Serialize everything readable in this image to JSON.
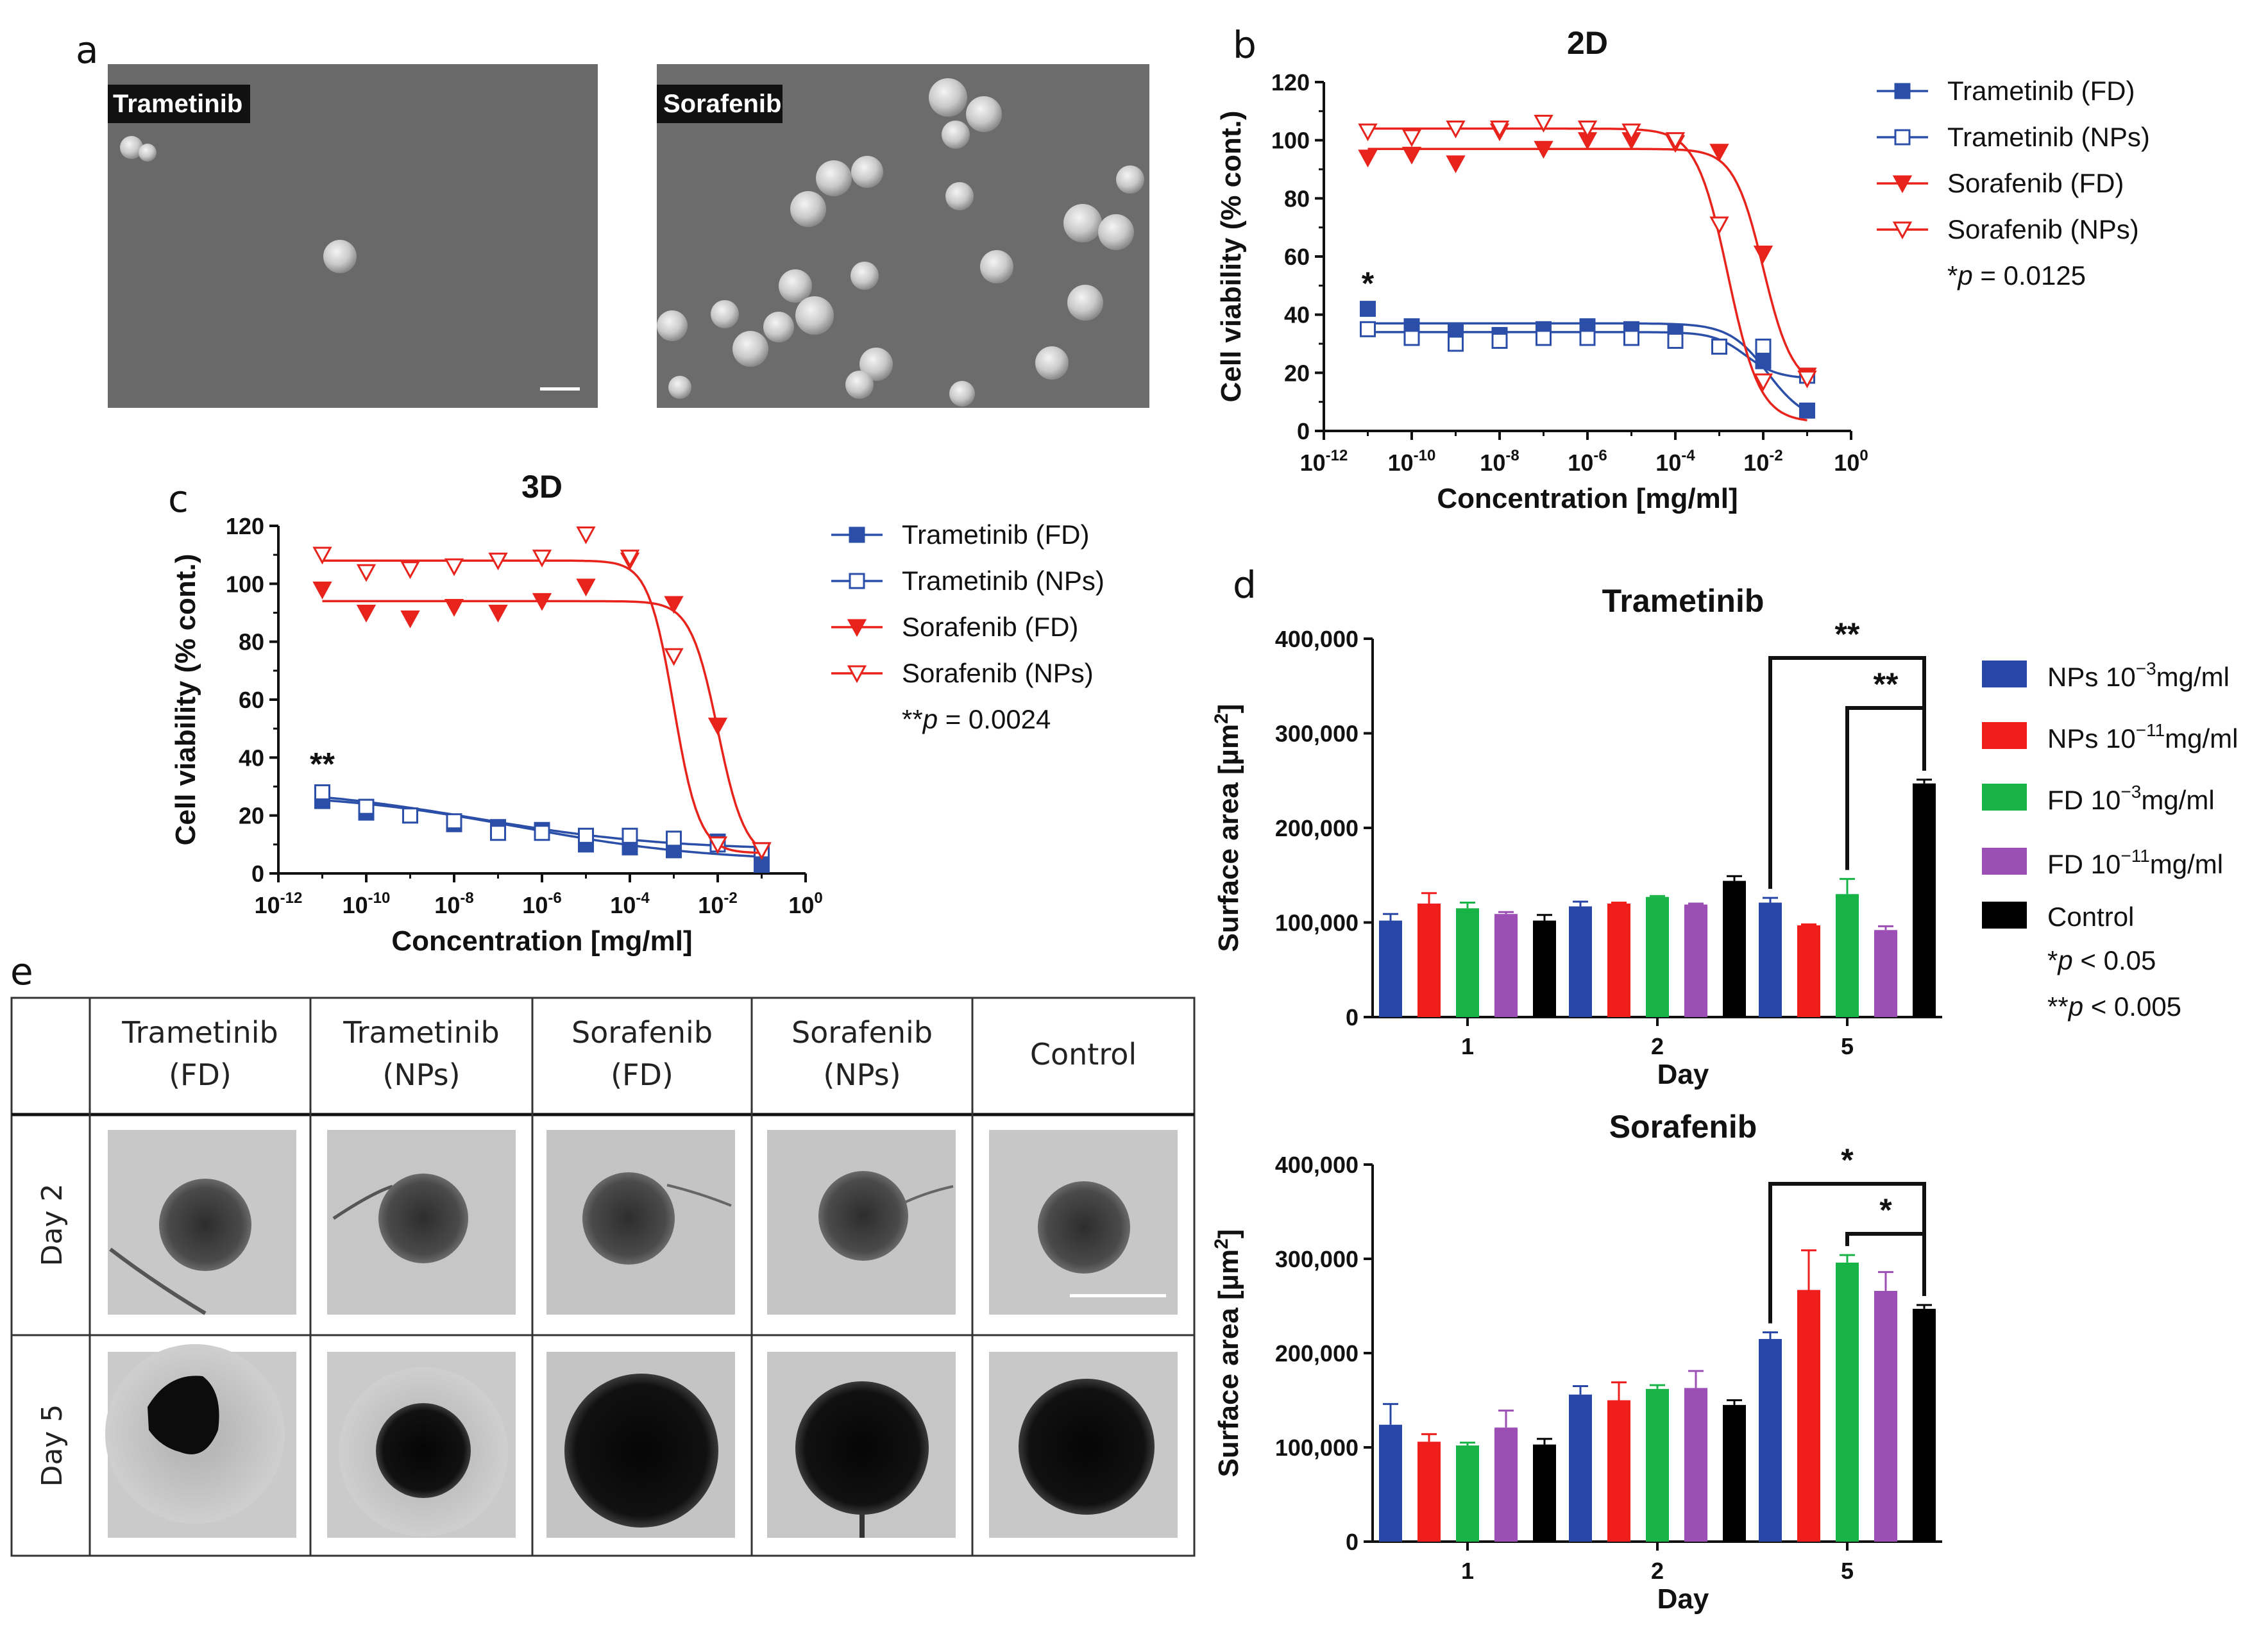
{
  "panel_labels": {
    "a": "a",
    "b": "b",
    "c": "c",
    "d": "d",
    "e": "e"
  },
  "panel_a": {
    "images": [
      {
        "label": "Trametinib"
      },
      {
        "label": "Sorafenib"
      }
    ]
  },
  "panel_e": {
    "columns": [
      "Trametinib",
      "(FD)",
      "Trametinib",
      "(NPs)",
      "Sorafenib",
      "(FD)",
      "Sorafenib",
      "(NPs)",
      "Control"
    ],
    "column_headers": [
      {
        "line1": "Trametinib",
        "line2": "(FD)"
      },
      {
        "line1": "Trametinib",
        "line2": "(NPs)"
      },
      {
        "line1": "Sorafenib",
        "line2": "(FD)"
      },
      {
        "line1": "Sorafenib",
        "line2": "(NPs)"
      },
      {
        "line1": "Control",
        "line2": ""
      }
    ],
    "rows": [
      "Day 2",
      "Day 5"
    ]
  },
  "chart_data": [
    {
      "id": "b",
      "type": "scatter",
      "title": "2D",
      "xlabel": "Concentration [mg/ml]",
      "ylabel": "Cell viability (% cont.)",
      "xscale": "log",
      "xlim_exp": [
        -12,
        0
      ],
      "xticks": [
        "10",
        "10",
        "10",
        "10",
        "10",
        "10",
        "10"
      ],
      "xtick_exps": [
        "-12",
        "-10",
        "-8",
        "-6",
        "-4",
        "-2",
        "0"
      ],
      "ylim": [
        0,
        120
      ],
      "yticks": [
        "0",
        "20",
        "40",
        "60",
        "80",
        "100",
        "120"
      ],
      "legend_position": "right",
      "significance": {
        "marker": "*",
        "x_exp": -11,
        "y": 47
      },
      "annotation_prefix": "*",
      "annotation_p": "p",
      "annotation_value": " = 0.0125",
      "series": [
        {
          "name": "Trametinib (FD)",
          "color": "#2b4fa8",
          "marker": "square-filled",
          "x_exp": [
            -11,
            -10,
            -9,
            -8,
            -7,
            -6,
            -5,
            -4,
            -3,
            -2,
            -1
          ],
          "y": [
            42,
            36,
            34,
            33,
            35,
            36,
            35,
            34,
            29,
            24,
            7
          ],
          "fit": {
            "top": 37,
            "bottom": 3,
            "log_ic50": -1.9,
            "hill": 1.0
          }
        },
        {
          "name": "Trametinib (NPs)",
          "color": "#2b4fa8",
          "marker": "square-open",
          "x_exp": [
            -11,
            -10,
            -9,
            -8,
            -7,
            -6,
            -5,
            -4,
            -3,
            -2,
            -1
          ],
          "y": [
            35,
            32,
            30,
            31,
            32,
            32,
            32,
            31,
            29,
            29,
            19
          ],
          "fit": {
            "top": 34,
            "bottom": 18,
            "log_ic50": -2.4,
            "hill": 1.2
          }
        },
        {
          "name": "Sorafenib (FD)",
          "color": "#e8231c",
          "marker": "triangle-down-filled",
          "x_exp": [
            -11,
            -10,
            -9,
            -8,
            -7,
            -6,
            -5,
            -4,
            -3,
            -2,
            -1
          ],
          "y": [
            94,
            95,
            92,
            103,
            97,
            100,
            100,
            99,
            96,
            61,
            19
          ],
          "fit": {
            "top": 97,
            "bottom": 15,
            "log_ic50": -2.0,
            "hill": 1.3
          }
        },
        {
          "name": "Sorafenib (NPs)",
          "color": "#e8231c",
          "marker": "triangle-down-open",
          "x_exp": [
            -11,
            -10,
            -9,
            -8,
            -7,
            -6,
            -5,
            -4,
            -3,
            -2,
            -1
          ],
          "y": [
            103,
            101,
            104,
            104,
            106,
            104,
            103,
            100,
            71,
            17,
            18
          ],
          "fit": {
            "top": 104,
            "bottom": 3,
            "log_ic50": -2.8,
            "hill": 1.2
          }
        }
      ]
    },
    {
      "id": "c",
      "type": "scatter",
      "title": "3D",
      "xlabel": "Concentration [mg/ml]",
      "ylabel": "Cell viability (% cont.)",
      "xscale": "log",
      "xlim_exp": [
        -12,
        0
      ],
      "xticks": [
        "10",
        "10",
        "10",
        "10",
        "10",
        "10",
        "10"
      ],
      "xtick_exps": [
        "-12",
        "-10",
        "-8",
        "-6",
        "-4",
        "-2",
        "0"
      ],
      "ylim": [
        0,
        120
      ],
      "yticks": [
        "0",
        "20",
        "40",
        "60",
        "80",
        "100",
        "120"
      ],
      "legend_position": "right",
      "significance": {
        "marker": "**",
        "x_exp": -11,
        "y": 34
      },
      "annotation_prefix": "**",
      "annotation_p": "p",
      "annotation_value": " = 0.0024",
      "series": [
        {
          "name": "Trametinib (FD)",
          "color": "#2b4fa8",
          "marker": "square-filled",
          "x_exp": [
            -11,
            -10,
            -9,
            -8,
            -7,
            -6,
            -5,
            -4,
            -3,
            -2,
            -1
          ],
          "y": [
            25,
            21,
            20,
            17,
            16,
            15,
            10,
            9,
            8,
            11,
            3
          ],
          "fit": {
            "top": 28,
            "bottom": 4,
            "log_ic50": -6.5,
            "hill": 0.2
          }
        },
        {
          "name": "Trametinib (NPs)",
          "color": "#2b4fa8",
          "marker": "square-open",
          "x_exp": [
            -11,
            -10,
            -9,
            -8,
            -7,
            -6,
            -5,
            -4,
            -3,
            -2,
            -1
          ],
          "y": [
            28,
            23,
            20,
            18,
            14,
            14,
            13,
            13,
            12,
            10,
            8
          ],
          "fit": {
            "top": 30,
            "bottom": 8,
            "log_ic50": -7.5,
            "hill": 0.2
          }
        },
        {
          "name": "Sorafenib (FD)",
          "color": "#e8231c",
          "marker": "triangle-down-filled",
          "x_exp": [
            -11,
            -10,
            -9,
            -8,
            -7,
            -6,
            -5,
            -4,
            -3,
            -2,
            -1
          ],
          "y": [
            98,
            90,
            88,
            92,
            90,
            94,
            99,
            108,
            93,
            51,
            8
          ],
          "fit": {
            "top": 94,
            "bottom": 5,
            "log_ic50": -2.0,
            "hill": 1.4
          }
        },
        {
          "name": "Sorafenib (NPs)",
          "color": "#e8231c",
          "marker": "triangle-down-open",
          "x_exp": [
            -11,
            -10,
            -9,
            -8,
            -7,
            -6,
            -5,
            -4,
            -3,
            -2,
            -1
          ],
          "y": [
            110,
            104,
            105,
            106,
            108,
            109,
            117,
            109,
            75,
            10,
            8
          ],
          "fit": {
            "top": 108,
            "bottom": 7,
            "log_ic50": -3.0,
            "hill": 1.5
          }
        }
      ]
    },
    {
      "id": "d-top",
      "type": "bar",
      "title": "Trametinib",
      "xlabel": "Day",
      "ylabel_prefix": "Surface area [µm",
      "ylabel_sup": "2",
      "ylabel_suffix": "]",
      "categories": [
        "1",
        "2",
        "5"
      ],
      "ylim": [
        0,
        400000
      ],
      "yticks": [
        "0",
        "100,000",
        "200,000",
        "300,000",
        "400,000"
      ],
      "series": [
        {
          "name": "NPs 10^-3 mg/ml",
          "color": "#2746a6",
          "values": [
            102000,
            117000,
            121000
          ],
          "errors": [
            7000,
            5000,
            5000
          ]
        },
        {
          "name": "NPs 10^-11 mg/ml",
          "color": "#f01d1d",
          "values": [
            120000,
            120000,
            97000
          ],
          "errors": [
            11000,
            1000,
            1000
          ]
        },
        {
          "name": "FD 10^-3 mg/ml",
          "color": "#17b347",
          "values": [
            115000,
            127000,
            130000
          ],
          "errors": [
            6000,
            1000,
            16000
          ]
        },
        {
          "name": "FD 10^-11 mg/ml",
          "color": "#9b4fb5",
          "values": [
            109000,
            119000,
            92000
          ],
          "errors": [
            2000,
            1000,
            4000
          ]
        },
        {
          "name": "Control",
          "color": "#000000",
          "values": [
            102000,
            144000,
            247000
          ],
          "errors": [
            6000,
            5000,
            4000
          ]
        }
      ],
      "significance": [
        {
          "label": "**",
          "from_category": 2,
          "from_series": 0,
          "to_series": 4,
          "level": 1
        },
        {
          "label": "**",
          "from_category": 2,
          "from_series": 2,
          "to_series": 4,
          "level": 0
        }
      ]
    },
    {
      "id": "d-bottom",
      "type": "bar",
      "title": "Sorafenib",
      "xlabel": "Day",
      "ylabel_prefix": "Surface area [µm",
      "ylabel_sup": "2",
      "ylabel_suffix": "]",
      "categories": [
        "1",
        "2",
        "5"
      ],
      "ylim": [
        0,
        400000
      ],
      "yticks": [
        "0",
        "100,000",
        "200,000",
        "300,000",
        "400,000"
      ],
      "series": [
        {
          "name": "NPs 10^-3 mg/ml",
          "color": "#2746a6",
          "values": [
            124000,
            156000,
            215000
          ],
          "errors": [
            22000,
            9000,
            7000
          ]
        },
        {
          "name": "NPs 10^-11 mg/ml",
          "color": "#f01d1d",
          "values": [
            106000,
            150000,
            267000
          ],
          "errors": [
            8000,
            19000,
            42000
          ]
        },
        {
          "name": "FD 10^-3 mg/ml",
          "color": "#17b347",
          "values": [
            102000,
            162000,
            296000
          ],
          "errors": [
            3000,
            4000,
            8000
          ]
        },
        {
          "name": "FD 10^-11 mg/ml",
          "color": "#9b4fb5",
          "values": [
            121000,
            163000,
            266000
          ],
          "errors": [
            18000,
            18000,
            20000
          ]
        },
        {
          "name": "Control",
          "color": "#000000",
          "values": [
            103000,
            145000,
            247000
          ],
          "errors": [
            6000,
            5000,
            4000
          ]
        }
      ],
      "significance": [
        {
          "label": "*",
          "from_category": 2,
          "from_series": 0,
          "to_series": 4,
          "level": 1
        },
        {
          "label": "*",
          "from_category": 2,
          "from_series": 2,
          "to_series": 4,
          "level": 0
        }
      ]
    }
  ],
  "legend_d": {
    "items": [
      {
        "base": "NPs 10",
        "sup": "−3",
        "unit": "mg/ml",
        "color": "#2746a6"
      },
      {
        "base": "NPs 10",
        "sup": "−11",
        "unit": "mg/ml",
        "color": "#f01d1d"
      },
      {
        "base": "FD 10",
        "sup": "−3",
        "unit": "mg/ml",
        "color": "#17b347"
      },
      {
        "base": "FD 10",
        "sup": "−11",
        "unit": "mg/ml",
        "color": "#9b4fb5"
      },
      {
        "base": "Control",
        "sup": "",
        "unit": "",
        "color": "#000000"
      }
    ],
    "note1_prefix": "*",
    "note1_p": "p",
    "note1_value": " < 0.05",
    "note2_prefix": "**",
    "note2_p": "p",
    "note2_value": " < 0.005"
  }
}
